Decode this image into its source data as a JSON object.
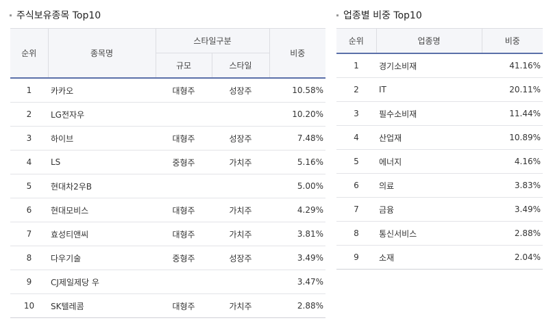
{
  "holdings": {
    "title": "주식보유종목 Top10",
    "headers": {
      "rank": "순위",
      "name": "종목명",
      "style_group": "스타일구분",
      "size": "규모",
      "style": "스타일",
      "weight": "비중"
    },
    "rows": [
      {
        "rank": "1",
        "name": "카카오",
        "size": "대형주",
        "style": "성장주",
        "weight": "10.58%"
      },
      {
        "rank": "2",
        "name": "LG전자우",
        "size": "",
        "style": "",
        "weight": "10.20%"
      },
      {
        "rank": "3",
        "name": "하이브",
        "size": "대형주",
        "style": "성장주",
        "weight": "7.48%"
      },
      {
        "rank": "4",
        "name": "LS",
        "size": "중형주",
        "style": "가치주",
        "weight": "5.16%"
      },
      {
        "rank": "5",
        "name": "현대차2우B",
        "size": "",
        "style": "",
        "weight": "5.00%"
      },
      {
        "rank": "6",
        "name": "현대모비스",
        "size": "대형주",
        "style": "가치주",
        "weight": "4.29%"
      },
      {
        "rank": "7",
        "name": "효성티앤씨",
        "size": "대형주",
        "style": "가치주",
        "weight": "3.81%"
      },
      {
        "rank": "8",
        "name": "다우기술",
        "size": "중형주",
        "style": "성장주",
        "weight": "3.49%"
      },
      {
        "rank": "9",
        "name": "CJ제일제당 우",
        "size": "",
        "style": "",
        "weight": "3.47%"
      },
      {
        "rank": "10",
        "name": "SK텔레콤",
        "size": "대형주",
        "style": "가치주",
        "weight": "2.88%"
      }
    ]
  },
  "sectors": {
    "title": "업종별 비중 Top10",
    "headers": {
      "rank": "순위",
      "sector": "업종명",
      "weight": "비중"
    },
    "rows": [
      {
        "rank": "1",
        "sector": "경기소비재",
        "weight": "41.16%"
      },
      {
        "rank": "2",
        "sector": "IT",
        "weight": "20.11%"
      },
      {
        "rank": "3",
        "sector": "필수소비재",
        "weight": "11.44%"
      },
      {
        "rank": "4",
        "sector": "산업재",
        "weight": "10.89%"
      },
      {
        "rank": "5",
        "sector": "에너지",
        "weight": "4.16%"
      },
      {
        "rank": "6",
        "sector": "의료",
        "weight": "3.83%"
      },
      {
        "rank": "7",
        "sector": "금융",
        "weight": "3.49%"
      },
      {
        "rank": "8",
        "sector": "통신서비스",
        "weight": "2.88%"
      },
      {
        "rank": "9",
        "sector": "소재",
        "weight": "2.04%"
      }
    ]
  }
}
